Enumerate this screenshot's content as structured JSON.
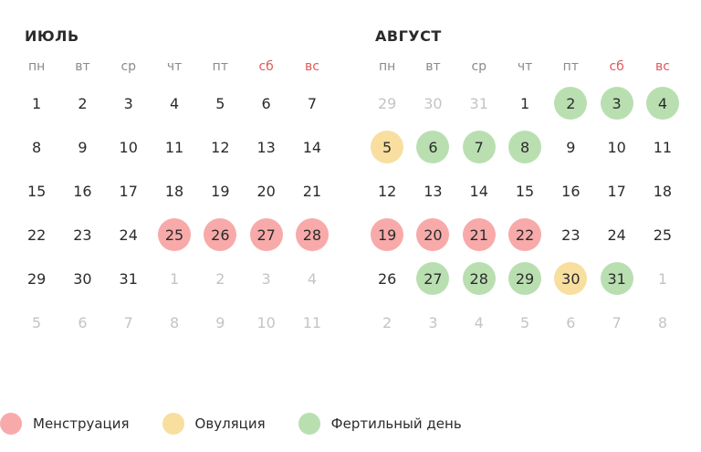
{
  "weekdays": [
    {
      "label": "пн",
      "weekend": false
    },
    {
      "label": "вт",
      "weekend": false
    },
    {
      "label": "ср",
      "weekend": false
    },
    {
      "label": "чт",
      "weekend": false
    },
    {
      "label": "пт",
      "weekend": false
    },
    {
      "label": "сб",
      "weekend": true
    },
    {
      "label": "вс",
      "weekend": true
    }
  ],
  "colors": {
    "menstruation": "#f7aaa9",
    "ovulation": "#f8dfa0",
    "fertile": "#b9dfb1",
    "weekend": "#e0585a"
  },
  "months": [
    {
      "title": "ИЮЛЬ",
      "weeks": [
        [
          {
            "d": "1",
            "s": ""
          },
          {
            "d": "2",
            "s": ""
          },
          {
            "d": "3",
            "s": ""
          },
          {
            "d": "4",
            "s": ""
          },
          {
            "d": "5",
            "s": ""
          },
          {
            "d": "6",
            "s": ""
          },
          {
            "d": "7",
            "s": ""
          }
        ],
        [
          {
            "d": "8",
            "s": ""
          },
          {
            "d": "9",
            "s": ""
          },
          {
            "d": "10",
            "s": ""
          },
          {
            "d": "11",
            "s": ""
          },
          {
            "d": "12",
            "s": ""
          },
          {
            "d": "13",
            "s": ""
          },
          {
            "d": "14",
            "s": ""
          }
        ],
        [
          {
            "d": "15",
            "s": ""
          },
          {
            "d": "16",
            "s": ""
          },
          {
            "d": "17",
            "s": ""
          },
          {
            "d": "18",
            "s": ""
          },
          {
            "d": "19",
            "s": ""
          },
          {
            "d": "20",
            "s": ""
          },
          {
            "d": "21",
            "s": ""
          }
        ],
        [
          {
            "d": "22",
            "s": ""
          },
          {
            "d": "23",
            "s": ""
          },
          {
            "d": "24",
            "s": ""
          },
          {
            "d": "25",
            "s": "menstruation"
          },
          {
            "d": "26",
            "s": "menstruation"
          },
          {
            "d": "27",
            "s": "menstruation"
          },
          {
            "d": "28",
            "s": "menstruation"
          }
        ],
        [
          {
            "d": "29",
            "s": ""
          },
          {
            "d": "30",
            "s": ""
          },
          {
            "d": "31",
            "s": ""
          },
          {
            "d": "1",
            "s": "other"
          },
          {
            "d": "2",
            "s": "other"
          },
          {
            "d": "3",
            "s": "other"
          },
          {
            "d": "4",
            "s": "other"
          }
        ],
        [
          {
            "d": "5",
            "s": "other"
          },
          {
            "d": "6",
            "s": "other"
          },
          {
            "d": "7",
            "s": "other"
          },
          {
            "d": "8",
            "s": "other"
          },
          {
            "d": "9",
            "s": "other"
          },
          {
            "d": "10",
            "s": "other"
          },
          {
            "d": "11",
            "s": "other"
          }
        ]
      ]
    },
    {
      "title": "АВГУСТ",
      "weeks": [
        [
          {
            "d": "29",
            "s": "other"
          },
          {
            "d": "30",
            "s": "other"
          },
          {
            "d": "31",
            "s": "other"
          },
          {
            "d": "1",
            "s": ""
          },
          {
            "d": "2",
            "s": "fertile"
          },
          {
            "d": "3",
            "s": "fertile"
          },
          {
            "d": "4",
            "s": "fertile"
          }
        ],
        [
          {
            "d": "5",
            "s": "ovulation"
          },
          {
            "d": "6",
            "s": "fertile"
          },
          {
            "d": "7",
            "s": "fertile"
          },
          {
            "d": "8",
            "s": "fertile"
          },
          {
            "d": "9",
            "s": ""
          },
          {
            "d": "10",
            "s": ""
          },
          {
            "d": "11",
            "s": ""
          }
        ],
        [
          {
            "d": "12",
            "s": ""
          },
          {
            "d": "13",
            "s": ""
          },
          {
            "d": "14",
            "s": ""
          },
          {
            "d": "15",
            "s": ""
          },
          {
            "d": "16",
            "s": ""
          },
          {
            "d": "17",
            "s": ""
          },
          {
            "d": "18",
            "s": ""
          }
        ],
        [
          {
            "d": "19",
            "s": "menstruation"
          },
          {
            "d": "20",
            "s": "menstruation"
          },
          {
            "d": "21",
            "s": "menstruation"
          },
          {
            "d": "22",
            "s": "menstruation"
          },
          {
            "d": "23",
            "s": ""
          },
          {
            "d": "24",
            "s": ""
          },
          {
            "d": "25",
            "s": ""
          }
        ],
        [
          {
            "d": "26",
            "s": ""
          },
          {
            "d": "27",
            "s": "fertile"
          },
          {
            "d": "28",
            "s": "fertile"
          },
          {
            "d": "29",
            "s": "fertile"
          },
          {
            "d": "30",
            "s": "ovulation"
          },
          {
            "d": "31",
            "s": "fertile"
          },
          {
            "d": "1",
            "s": "other"
          }
        ],
        [
          {
            "d": "2",
            "s": "other"
          },
          {
            "d": "3",
            "s": "other"
          },
          {
            "d": "4",
            "s": "other"
          },
          {
            "d": "5",
            "s": "other"
          },
          {
            "d": "6",
            "s": "other"
          },
          {
            "d": "7",
            "s": "other"
          },
          {
            "d": "8",
            "s": "other"
          }
        ]
      ]
    }
  ],
  "legend": {
    "menstruation": "Менструация",
    "ovulation": "Овуляция",
    "fertile": "Фертильный день"
  }
}
